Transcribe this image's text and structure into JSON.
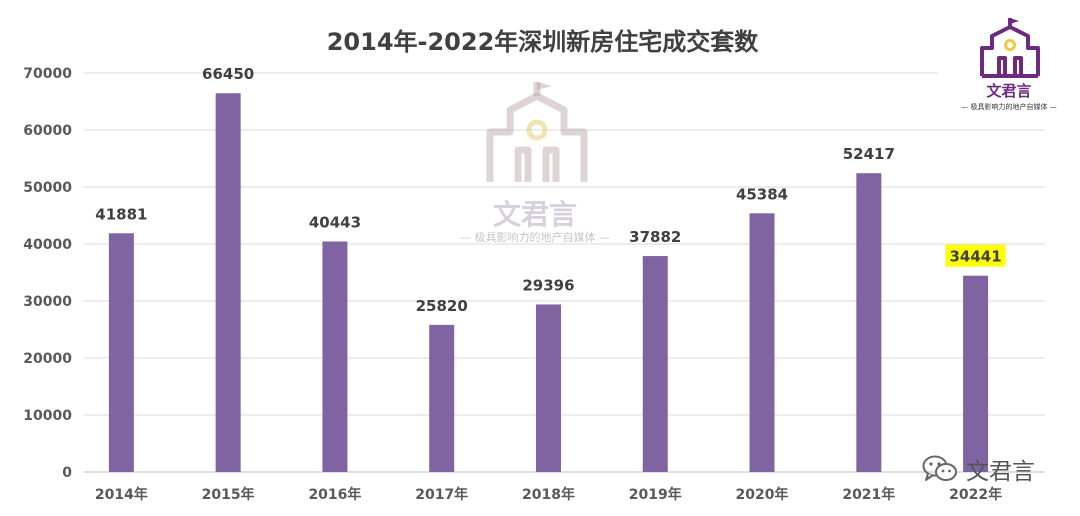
{
  "chart_data": {
    "type": "bar",
    "title": "2014年-2022年深圳新房住宅成交套数",
    "categories": [
      "2014年",
      "2015年",
      "2016年",
      "2017年",
      "2018年",
      "2019年",
      "2020年",
      "2021年",
      "2022年"
    ],
    "values": [
      41881,
      66450,
      40443,
      25820,
      29396,
      37882,
      45384,
      52417,
      34441
    ],
    "ylim": [
      0,
      70000
    ],
    "yticks": [
      0,
      10000,
      20000,
      30000,
      40000,
      50000,
      60000,
      70000
    ],
    "xlabel": "",
    "ylabel": "",
    "grid": true,
    "legend": "none",
    "bar_color": "#8064a2",
    "highlight_index": 8,
    "highlight_color": "#ffff00"
  },
  "logo": {
    "name": "文君言",
    "slogan": "— 极具影响力的地产自媒体 —",
    "color": "#6d2a7f",
    "icon": "building-logo-icon"
  },
  "watermark": {
    "name": "文君言",
    "slogan": "— 极具影响力的地产自媒体 —"
  },
  "wechat": {
    "icon": "wechat-icon",
    "name": "文君言"
  }
}
